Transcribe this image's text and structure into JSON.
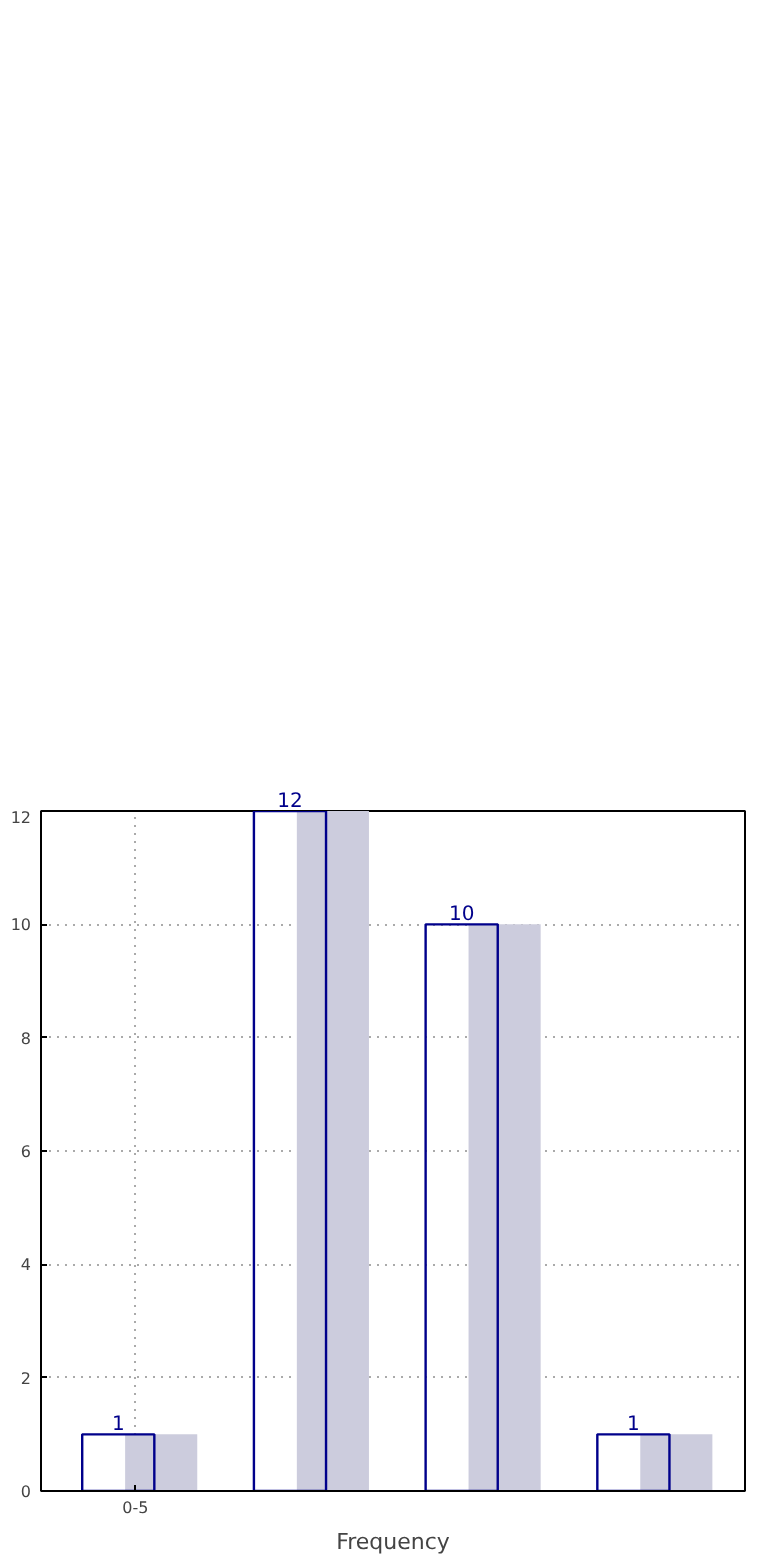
{
  "chart_data": {
    "type": "bar",
    "xlabel": "Frequency",
    "categories": [
      "0-5",
      null,
      null,
      null
    ],
    "series": [
      {
        "color": "#00008b",
        "values": [
          1,
          12,
          10,
          1
        ],
        "value_labels": [
          "1",
          "12",
          "10",
          "1"
        ]
      },
      {
        "color": "#ccccdd",
        "values": [
          1,
          12,
          10,
          1
        ]
      }
    ],
    "ylim": [
      0,
      12
    ],
    "yticks": [
      0,
      2,
      4,
      6,
      8,
      10,
      12
    ],
    "grid": true
  }
}
